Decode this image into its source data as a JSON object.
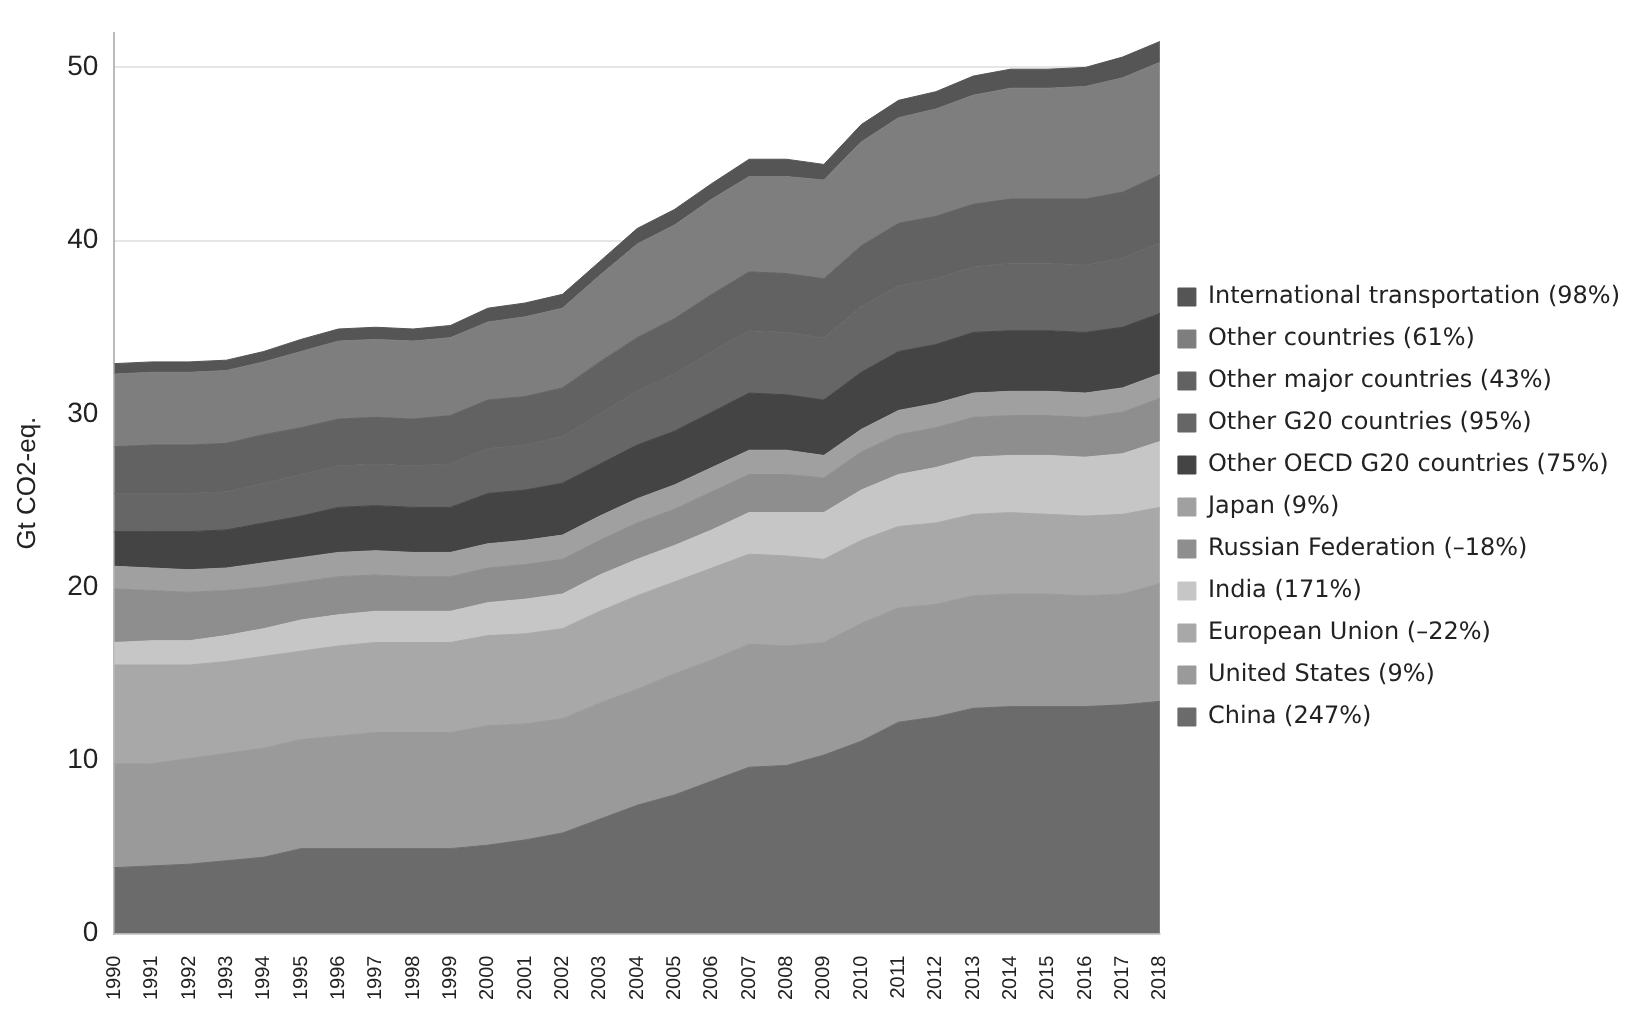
{
  "chart_data": {
    "type": "area",
    "ylabel": "Gt CO2-eq.",
    "stacked": true,
    "grid": "y",
    "legend": "right",
    "categories": [
      "1990",
      "1991",
      "1992",
      "1993",
      "1994",
      "1995",
      "1996",
      "1997",
      "1998",
      "1999",
      "2000",
      "2001",
      "2002",
      "2003",
      "2004",
      "2005",
      "2006",
      "2007",
      "2008",
      "2009",
      "2010",
      "2011",
      "2012",
      "2013",
      "2014",
      "2015",
      "2016",
      "2017",
      "2018"
    ],
    "ylim": [
      0,
      52
    ],
    "yticks": [
      0,
      10,
      20,
      30,
      40,
      50
    ],
    "series": [
      {
        "name": "China (247%)",
        "color": "#6b6b6b",
        "values": [
          3.8,
          3.9,
          4.0,
          4.2,
          4.4,
          4.9,
          4.9,
          4.9,
          4.9,
          4.9,
          5.1,
          5.4,
          5.8,
          6.6,
          7.4,
          8.0,
          8.8,
          9.6,
          9.7,
          10.3,
          11.1,
          12.2,
          12.5,
          13.0,
          13.1,
          13.1,
          13.1,
          13.2,
          13.4
        ]
      },
      {
        "name": "United States (9%)",
        "color": "#9a9a9a",
        "values": [
          6.0,
          5.9,
          6.1,
          6.2,
          6.3,
          6.3,
          6.5,
          6.7,
          6.7,
          6.7,
          6.9,
          6.7,
          6.6,
          6.7,
          6.7,
          7.0,
          7.0,
          7.1,
          6.9,
          6.5,
          6.8,
          6.6,
          6.5,
          6.5,
          6.5,
          6.5,
          6.4,
          6.4,
          6.8
        ]
      },
      {
        "name": "European Union (–22%)",
        "color": "#a8a8a8",
        "values": [
          5.7,
          5.7,
          5.4,
          5.3,
          5.3,
          5.1,
          5.2,
          5.2,
          5.2,
          5.2,
          5.2,
          5.2,
          5.2,
          5.3,
          5.4,
          5.3,
          5.3,
          5.2,
          5.2,
          4.8,
          4.8,
          4.7,
          4.7,
          4.7,
          4.7,
          4.6,
          4.6,
          4.6,
          4.4
        ]
      },
      {
        "name": "India (171%)",
        "color": "#c6c6c6",
        "values": [
          1.3,
          1.4,
          1.4,
          1.5,
          1.6,
          1.8,
          1.8,
          1.8,
          1.8,
          1.8,
          1.9,
          2.0,
          2.0,
          2.1,
          2.1,
          2.1,
          2.2,
          2.4,
          2.5,
          2.7,
          2.9,
          3.0,
          3.2,
          3.3,
          3.3,
          3.4,
          3.4,
          3.5,
          3.8
        ]
      },
      {
        "name": "Russian Federation (–18%)",
        "color": "#8e8e8e",
        "values": [
          3.1,
          2.9,
          2.8,
          2.6,
          2.4,
          2.2,
          2.2,
          2.1,
          2.0,
          2.0,
          2.0,
          2.0,
          2.0,
          2.0,
          2.1,
          2.1,
          2.2,
          2.2,
          2.2,
          2.0,
          2.2,
          2.3,
          2.3,
          2.3,
          2.3,
          2.3,
          2.3,
          2.4,
          2.5
        ]
      },
      {
        "name": "Japan (9%)",
        "color": "#a0a0a0",
        "values": [
          1.3,
          1.3,
          1.3,
          1.3,
          1.4,
          1.4,
          1.4,
          1.4,
          1.4,
          1.4,
          1.4,
          1.4,
          1.4,
          1.4,
          1.4,
          1.4,
          1.4,
          1.4,
          1.4,
          1.3,
          1.3,
          1.4,
          1.4,
          1.4,
          1.4,
          1.4,
          1.4,
          1.4,
          1.4
        ]
      },
      {
        "name": "Other OECD G20 countries (75%)",
        "color": "#444444",
        "values": [
          2.0,
          2.1,
          2.2,
          2.2,
          2.3,
          2.4,
          2.6,
          2.6,
          2.6,
          2.6,
          2.9,
          2.9,
          3.0,
          3.0,
          3.1,
          3.1,
          3.2,
          3.3,
          3.2,
          3.2,
          3.3,
          3.4,
          3.4,
          3.5,
          3.5,
          3.5,
          3.5,
          3.5,
          3.5
        ]
      },
      {
        "name": "Other G20 countries (95%)",
        "color": "#666666",
        "values": [
          2.2,
          2.2,
          2.2,
          2.2,
          2.3,
          2.4,
          2.4,
          2.4,
          2.4,
          2.5,
          2.6,
          2.6,
          2.7,
          2.9,
          3.1,
          3.3,
          3.5,
          3.6,
          3.6,
          3.6,
          3.8,
          3.8,
          3.8,
          3.8,
          3.9,
          3.9,
          3.9,
          4.0,
          4.1
        ]
      },
      {
        "name": "Other major countries (43%)",
        "color": "#626262",
        "values": [
          2.7,
          2.8,
          2.8,
          2.8,
          2.8,
          2.7,
          2.7,
          2.7,
          2.7,
          2.8,
          2.8,
          2.8,
          2.8,
          3.0,
          3.1,
          3.2,
          3.3,
          3.4,
          3.4,
          3.4,
          3.5,
          3.6,
          3.6,
          3.6,
          3.7,
          3.7,
          3.8,
          3.8,
          3.9
        ]
      },
      {
        "name": "Other countries (61%)",
        "color": "#7e7e7e",
        "values": [
          4.2,
          4.2,
          4.2,
          4.2,
          4.2,
          4.4,
          4.5,
          4.5,
          4.5,
          4.5,
          4.5,
          4.6,
          4.6,
          5.0,
          5.4,
          5.4,
          5.5,
          5.5,
          5.6,
          5.7,
          6.0,
          6.1,
          6.2,
          6.3,
          6.4,
          6.4,
          6.5,
          6.6,
          6.5
        ]
      },
      {
        "name": "International transportation (98%)",
        "color": "#555555",
        "values": [
          0.6,
          0.6,
          0.6,
          0.6,
          0.6,
          0.7,
          0.7,
          0.7,
          0.7,
          0.7,
          0.8,
          0.8,
          0.8,
          0.8,
          0.9,
          0.9,
          0.9,
          1.0,
          1.0,
          0.9,
          1.0,
          1.0,
          1.0,
          1.1,
          1.1,
          1.1,
          1.1,
          1.2,
          1.2
        ]
      }
    ]
  }
}
